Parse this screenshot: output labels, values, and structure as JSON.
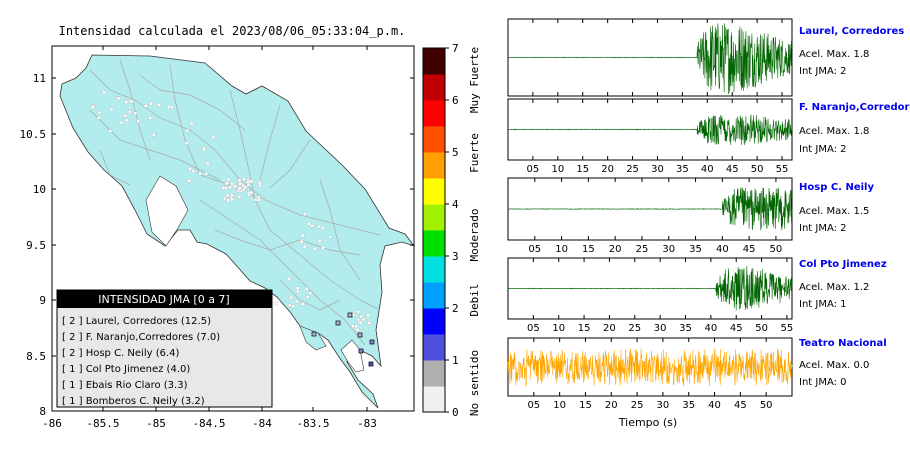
{
  "map": {
    "title": "Intensidad calculada el 2023/08/06_05:33:04_p.m.",
    "lat_ticks": [
      "11",
      "10.5",
      "10",
      "9.5",
      "9",
      "8.5",
      "8"
    ],
    "lon_ticks": [
      "-86",
      "-85.5",
      "-85",
      "-84.5",
      "-84",
      "-83.5",
      "-83"
    ],
    "colors": {
      "land": "#b3ecec",
      "sea": "#ffffff",
      "roads": "#a0a0a0",
      "border": "#000000"
    }
  },
  "colorbar": {
    "ticks": [
      "0",
      "1",
      "2",
      "3",
      "4",
      "5",
      "6",
      "7"
    ],
    "category_labels": [
      "No sentido",
      "Debil",
      "Moderado",
      "Fuerte",
      "Muy Fuerte"
    ],
    "colors": [
      "#f0f0f0",
      "#b0b0b0",
      "#5050e0",
      "#0000ff",
      "#00a0ff",
      "#00e0e0",
      "#00e000",
      "#a0f000",
      "#ffff00",
      "#ffa000",
      "#ff5000",
      "#ff0000",
      "#c00000",
      "#400000"
    ]
  },
  "legend": {
    "header": "INTENSIDAD JMA [0 a 7]",
    "items": [
      "[ 2 ] Laurel, Corredores (12.5)",
      "[ 2 ] F. Naranjo,Corredores (7.0)",
      "[ 2 ] Hosp C. Neily (6.4)",
      "[ 1 ] Col Pto Jimenez (4.0)",
      "[ 1 ] Ebais Rio Claro (3.3)",
      "[ 1 ] Bomberos C. Neily (3.2)"
    ]
  },
  "seismograms": [
    {
      "station": "Laurel, Corredores",
      "accel": "Acel. Max. 1.8",
      "jma": "Int JMA: 2",
      "color": "#006400",
      "ticks": [
        "05",
        "10",
        "15",
        "20",
        "25",
        "30",
        "35",
        "40",
        "45",
        "50",
        "55"
      ],
      "xmax": 57,
      "onset": 38,
      "amp": 1.0,
      "decay": 0.05
    },
    {
      "station": "F. Naranjo,Corredores",
      "accel": "Acel. Max. 1.8",
      "jma": "Int JMA: 2",
      "color": "#006400",
      "ticks": [
        "05",
        "10",
        "15",
        "20",
        "25",
        "30",
        "35",
        "40",
        "45",
        "50",
        "55"
      ],
      "xmax": 57,
      "onset": 38,
      "amp": 0.55,
      "decay": 0.04
    },
    {
      "station": "Hosp C. Neily",
      "accel": "Acel. Max. 1.5",
      "jma": "Int JMA: 2",
      "color": "#006400",
      "ticks": [
        "05",
        "10",
        "15",
        "20",
        "25",
        "30",
        "35",
        "40",
        "45",
        "50"
      ],
      "xmax": 53,
      "onset": 40,
      "amp": 0.75,
      "decay": 0.0
    },
    {
      "station": "Col Pto Jimenez",
      "accel": "Acel. Max. 1.2",
      "jma": "Int JMA: 1",
      "color": "#006400",
      "ticks": [
        "05",
        "10",
        "15",
        "20",
        "25",
        "30",
        "35",
        "40",
        "45",
        "50",
        "55"
      ],
      "xmax": 56,
      "onset": 41,
      "amp": 0.8,
      "decay": 0.06
    },
    {
      "station": "Teatro Nacional",
      "accel": "Acel. Max. 0.0",
      "jma": "Int JMA: 0",
      "color": "#ffa500",
      "ticks": [
        "05",
        "10",
        "15",
        "20",
        "25",
        "30",
        "35",
        "40",
        "45",
        "50"
      ],
      "xmax": 55,
      "onset": 0,
      "amp": 0.7,
      "decay": 0.0,
      "noise": true
    }
  ],
  "xlabel": "Tiempo (s)"
}
